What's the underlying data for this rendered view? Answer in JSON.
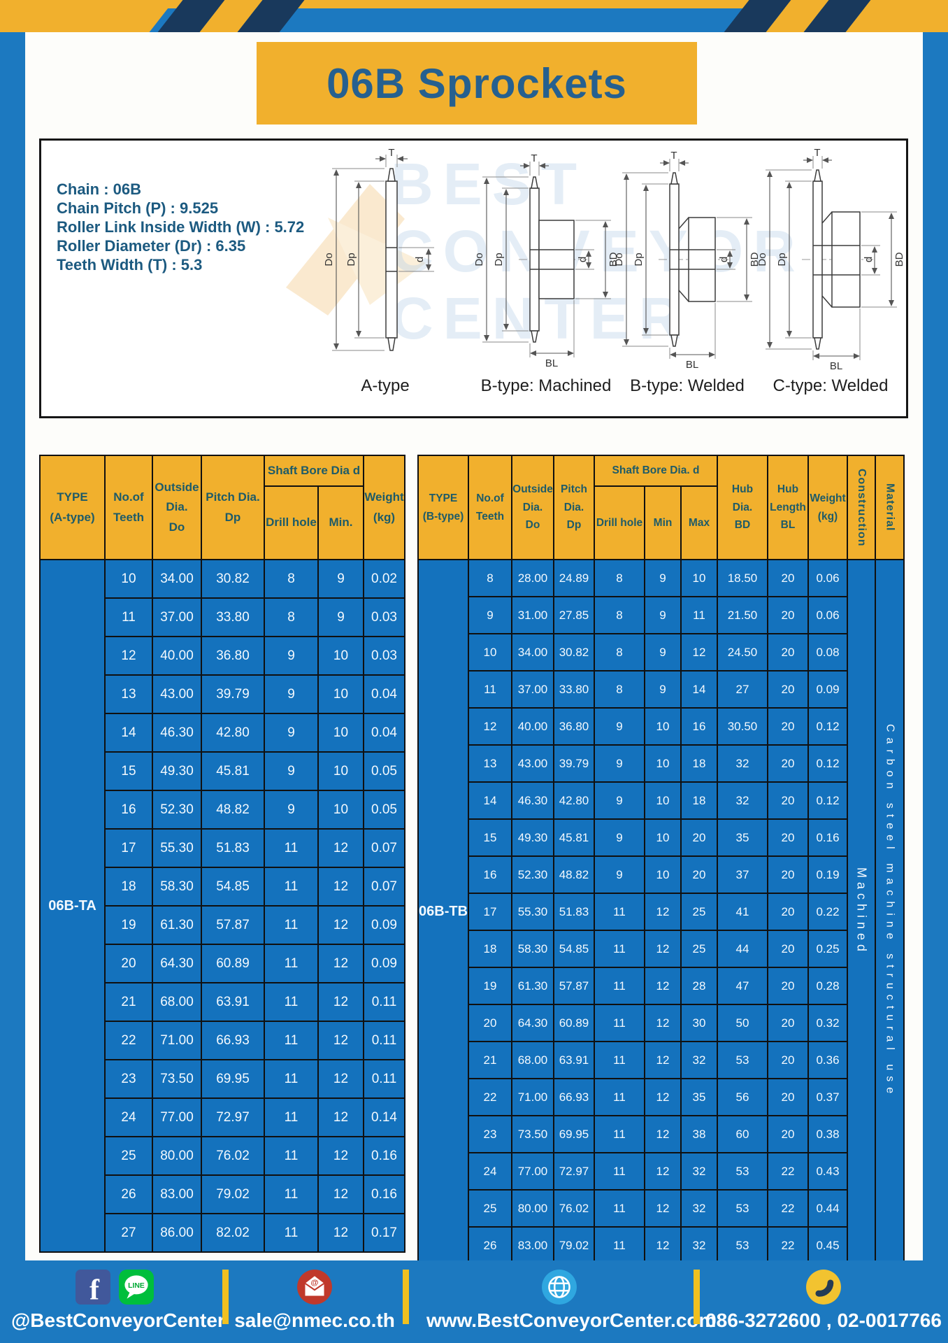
{
  "page": {
    "title": "06B Sprockets"
  },
  "colors": {
    "frame_blue": "#1c79c0",
    "cell_blue": "#1472bd",
    "brand_yellow": "#f1b02d",
    "stripe_navy": "#19395c"
  },
  "specs": {
    "lines": [
      "Chain  :  06B",
      "Chain Pitch (P)  :  9.525",
      "Roller Link Inside Width (W)  :  5.72",
      "Roller Diameter (Dr)  :  6.35",
      "Teeth Width (T)  :  5.3"
    ]
  },
  "watermark": [
    "BEST",
    "CONVEYOR",
    "CENTER"
  ],
  "diagrams": {
    "a": {
      "caption": "A-type",
      "dims": {
        "t": "T",
        "do": "Do",
        "dp": "Dp",
        "d": "d"
      }
    },
    "bm": {
      "caption": "B-type: Machined",
      "dims": {
        "t": "T",
        "do": "Do",
        "dp": "Dp",
        "d": "d",
        "bd": "BD",
        "bl": "BL"
      }
    },
    "bw": {
      "caption": "B-type: Welded",
      "dims": {
        "t": "T",
        "do": "Do",
        "dp": "Dp",
        "d": "d",
        "bd": "BD",
        "bl": "BL"
      }
    },
    "cw": {
      "caption": "C-type: Welded",
      "dims": {
        "t": "T",
        "do": "Do",
        "dp": "Dp",
        "d": "d",
        "bd": "BD",
        "bl": "BL"
      }
    }
  },
  "tables": {
    "left": {
      "type_label": "06B-TA",
      "headers": {
        "type": "TYPE\n(A-type)",
        "teeth": "No.of\nTeeth",
        "outside": "Outside\nDia.\nDo",
        "pitch": "Pitch Dia.\nDp",
        "shaft": "Shaft Bore Dia d",
        "drill": "Drill hole",
        "min": "Min.",
        "weight": "Weight\n(kg)"
      },
      "rows": [
        [
          "10",
          "34.00",
          "30.82",
          "8",
          "9",
          "0.02"
        ],
        [
          "11",
          "37.00",
          "33.80",
          "8",
          "9",
          "0.03"
        ],
        [
          "12",
          "40.00",
          "36.80",
          "9",
          "10",
          "0.03"
        ],
        [
          "13",
          "43.00",
          "39.79",
          "9",
          "10",
          "0.04"
        ],
        [
          "14",
          "46.30",
          "42.80",
          "9",
          "10",
          "0.04"
        ],
        [
          "15",
          "49.30",
          "45.81",
          "9",
          "10",
          "0.05"
        ],
        [
          "16",
          "52.30",
          "48.82",
          "9",
          "10",
          "0.05"
        ],
        [
          "17",
          "55.30",
          "51.83",
          "11",
          "12",
          "0.07"
        ],
        [
          "18",
          "58.30",
          "54.85",
          "11",
          "12",
          "0.07"
        ],
        [
          "19",
          "61.30",
          "57.87",
          "11",
          "12",
          "0.09"
        ],
        [
          "20",
          "64.30",
          "60.89",
          "11",
          "12",
          "0.09"
        ],
        [
          "21",
          "68.00",
          "63.91",
          "11",
          "12",
          "0.11"
        ],
        [
          "22",
          "71.00",
          "66.93",
          "11",
          "12",
          "0.11"
        ],
        [
          "23",
          "73.50",
          "69.95",
          "11",
          "12",
          "0.11"
        ],
        [
          "24",
          "77.00",
          "72.97",
          "11",
          "12",
          "0.14"
        ],
        [
          "25",
          "80.00",
          "76.02",
          "11",
          "12",
          "0.16"
        ],
        [
          "26",
          "83.00",
          "79.02",
          "11",
          "12",
          "0.16"
        ],
        [
          "27",
          "86.00",
          "82.02",
          "11",
          "12",
          "0.17"
        ]
      ]
    },
    "right": {
      "type_label": "06B-TB",
      "construction": "Machined",
      "material": "Carbon steel machine structural use",
      "headers": {
        "type": "TYPE\n(B-type)",
        "teeth": "No.of\nTeeth",
        "outside": "Outside\nDia.\nDo",
        "pitch": "Pitch\nDia.\nDp",
        "shaft": "Shaft Bore Dia.  d",
        "drill": "Drill hole",
        "min": "Min",
        "max": "Max",
        "bd": "Hub\nDia.\nBD",
        "bl": "Hub\nLength\nBL",
        "weight": "Weight\n(kg)",
        "construction": "Construction",
        "material": "Material"
      },
      "rows": [
        [
          "8",
          "28.00",
          "24.89",
          "8",
          "9",
          "10",
          "18.50",
          "20",
          "0.06"
        ],
        [
          "9",
          "31.00",
          "27.85",
          "8",
          "9",
          "11",
          "21.50",
          "20",
          "0.06"
        ],
        [
          "10",
          "34.00",
          "30.82",
          "8",
          "9",
          "12",
          "24.50",
          "20",
          "0.08"
        ],
        [
          "11",
          "37.00",
          "33.80",
          "8",
          "9",
          "14",
          "27",
          "20",
          "0.09"
        ],
        [
          "12",
          "40.00",
          "36.80",
          "9",
          "10",
          "16",
          "30.50",
          "20",
          "0.12"
        ],
        [
          "13",
          "43.00",
          "39.79",
          "9",
          "10",
          "18",
          "32",
          "20",
          "0.12"
        ],
        [
          "14",
          "46.30",
          "42.80",
          "9",
          "10",
          "18",
          "32",
          "20",
          "0.12"
        ],
        [
          "15",
          "49.30",
          "45.81",
          "9",
          "10",
          "20",
          "35",
          "20",
          "0.16"
        ],
        [
          "16",
          "52.30",
          "48.82",
          "9",
          "10",
          "20",
          "37",
          "20",
          "0.19"
        ],
        [
          "17",
          "55.30",
          "51.83",
          "11",
          "12",
          "25",
          "41",
          "20",
          "0.22"
        ],
        [
          "18",
          "58.30",
          "54.85",
          "11",
          "12",
          "25",
          "44",
          "20",
          "0.25"
        ],
        [
          "19",
          "61.30",
          "57.87",
          "11",
          "12",
          "28",
          "47",
          "20",
          "0.28"
        ],
        [
          "20",
          "64.30",
          "60.89",
          "11",
          "12",
          "30",
          "50",
          "20",
          "0.32"
        ],
        [
          "21",
          "68.00",
          "63.91",
          "11",
          "12",
          "32",
          "53",
          "20",
          "0.36"
        ],
        [
          "22",
          "71.00",
          "66.93",
          "11",
          "12",
          "35",
          "56",
          "20",
          "0.37"
        ],
        [
          "23",
          "73.50",
          "69.95",
          "11",
          "12",
          "38",
          "60",
          "20",
          "0.38"
        ],
        [
          "24",
          "77.00",
          "72.97",
          "11",
          "12",
          "32",
          "53",
          "22",
          "0.43"
        ],
        [
          "25",
          "80.00",
          "76.02",
          "11",
          "12",
          "32",
          "53",
          "22",
          "0.44"
        ],
        [
          "26",
          "83.00",
          "79.02",
          "11",
          "12",
          "32",
          "53",
          "22",
          "0.45"
        ]
      ]
    }
  },
  "footer": {
    "items": [
      {
        "icon": "facebook-line",
        "label": "@BestConveyorCenter"
      },
      {
        "icon": "email",
        "label": "sale@nmec.co.th"
      },
      {
        "icon": "globe",
        "label": "www.BestConveyorCenter.com"
      },
      {
        "icon": "phone",
        "label": "086-3272600 , 02-0017766"
      }
    ]
  }
}
